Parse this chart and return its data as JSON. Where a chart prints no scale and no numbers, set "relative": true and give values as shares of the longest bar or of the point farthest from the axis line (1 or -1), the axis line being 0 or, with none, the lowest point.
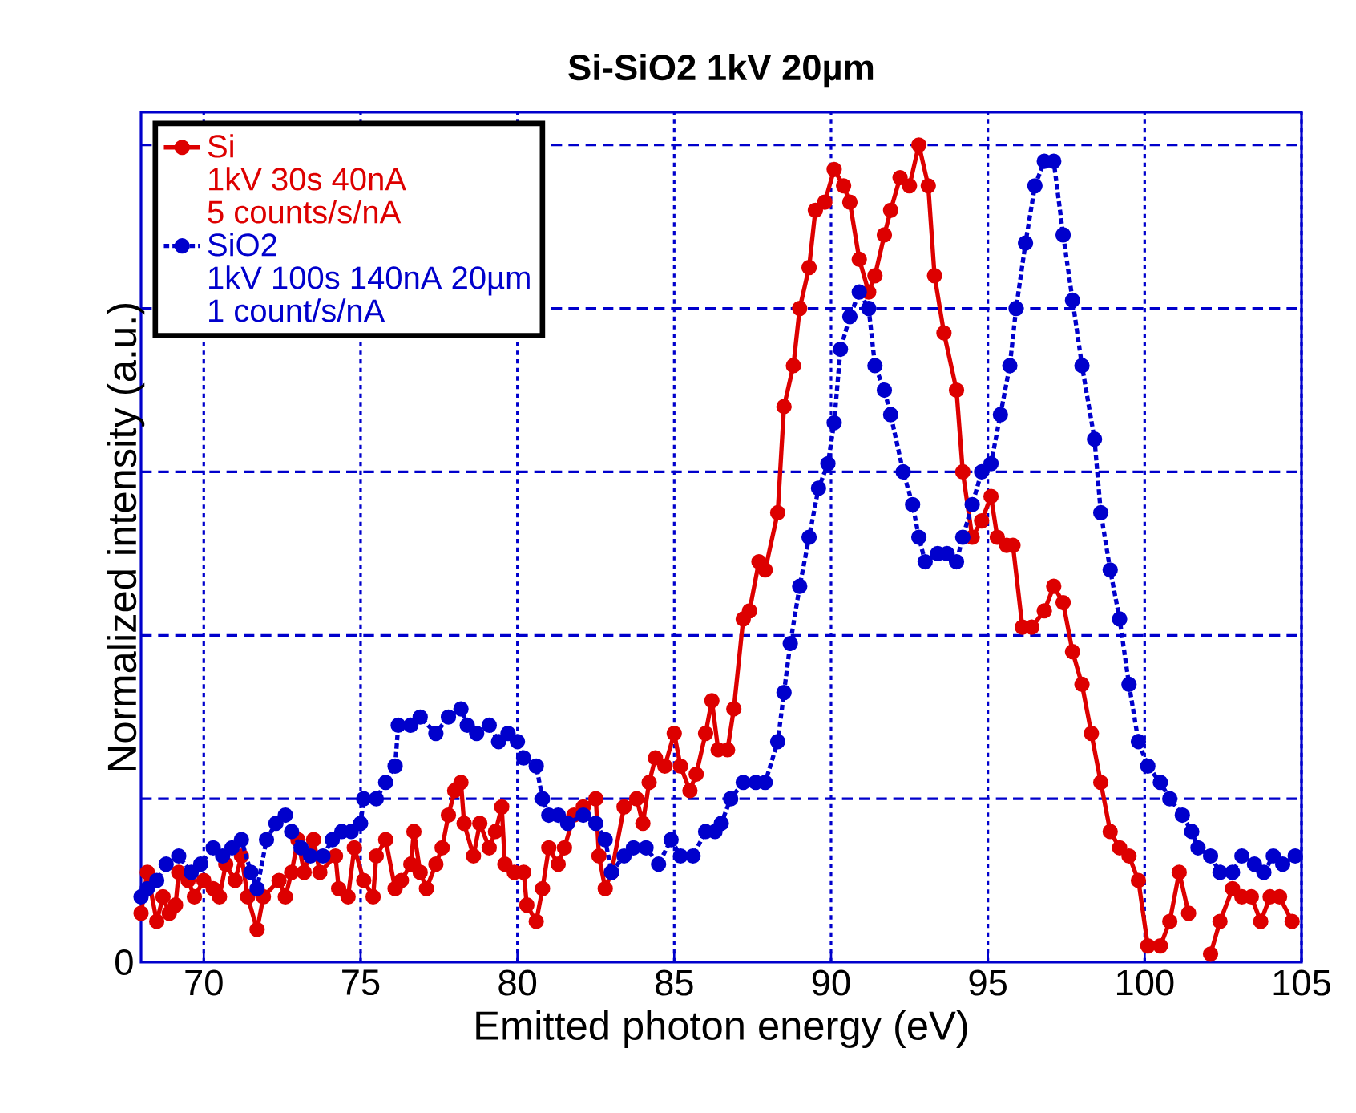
{
  "chart_data": {
    "type": "line",
    "title": "Si-SiO2 1kV 20µm",
    "xlabel": "Emitted photon energy (eV)",
    "ylabel": "Normalized intensity (a.u.)",
    "relative": true,
    "xlim": [
      68,
      105
    ],
    "xticks": [
      70,
      75,
      80,
      85,
      90,
      95,
      100,
      105
    ],
    "grid": true,
    "legend": "top left",
    "marker": "circle",
    "annotations": [
      "0",
      "1kV 30s 40nA",
      "5 counts/s/nA",
      "1kV 100s 140nA 20µm",
      "1 count/s/nA"
    ],
    "series": [
      {
        "name": "Si",
        "color": "#dd0000",
        "line_style": "solid",
        "x": [
          68.0,
          68.2,
          68.5,
          68.7,
          68.9,
          69.1,
          69.2,
          69.5,
          69.7,
          70.0,
          70.3,
          70.5,
          70.7,
          71.0,
          71.2,
          71.4,
          71.7,
          71.9,
          72.4,
          72.6,
          72.8,
          73.0,
          73.2,
          73.5,
          73.7,
          74.2,
          74.3,
          74.6,
          74.8,
          75.1,
          75.4,
          75.5,
          75.8,
          76.1,
          76.3,
          76.6,
          76.7,
          76.9,
          77.1,
          77.4,
          77.6,
          77.8,
          78.0,
          78.2,
          78.3,
          78.6,
          78.8,
          79.1,
          79.3,
          79.5,
          79.6,
          79.9,
          80.2,
          80.3,
          80.6,
          80.8,
          81.0,
          81.3,
          81.5,
          81.8,
          82.1,
          82.5,
          82.6,
          82.8,
          83.0,
          83.4,
          83.8,
          84.0,
          84.2,
          84.4,
          84.7,
          85.0,
          85.2,
          85.5,
          85.7,
          86.0,
          86.2,
          86.4,
          86.7,
          86.9,
          87.2,
          87.4,
          87.7,
          87.9,
          88.3,
          88.5,
          88.8,
          89.0,
          89.3,
          89.5,
          89.8,
          90.1,
          90.4,
          90.6,
          90.9,
          91.2,
          91.4,
          91.7,
          91.9,
          92.2,
          92.5,
          92.8,
          93.1,
          93.3,
          93.6,
          94.0,
          94.2,
          94.5,
          94.8,
          95.1,
          95.3,
          95.6,
          95.8,
          96.1,
          96.4,
          96.8,
          97.1,
          97.4,
          97.7,
          98.0,
          98.3,
          98.6,
          98.9,
          99.2,
          99.5,
          99.8,
          100.1,
          100.5,
          100.8,
          101.1,
          101.4,
          101.8,
          102.1,
          102.4,
          102.8,
          103.1,
          103.4,
          103.7,
          104.0,
          104.3,
          104.7
        ],
        "values": [
          0.06,
          0.11,
          0.05,
          0.08,
          0.06,
          0.07,
          0.11,
          0.1,
          0.08,
          0.1,
          0.09,
          0.08,
          0.12,
          0.1,
          0.13,
          0.08,
          0.04,
          0.08,
          0.1,
          0.08,
          0.11,
          0.15,
          0.11,
          0.15,
          0.11,
          0.13,
          0.09,
          0.08,
          0.14,
          0.1,
          0.08,
          0.13,
          0.15,
          0.09,
          0.1,
          0.12,
          0.16,
          0.11,
          0.09,
          0.12,
          0.14,
          0.18,
          0.21,
          0.22,
          0.17,
          0.13,
          0.17,
          0.14,
          0.16,
          0.19,
          0.12,
          0.11,
          0.11,
          0.07,
          0.05,
          0.09,
          0.14,
          0.12,
          0.14,
          0.18,
          0.19,
          0.2,
          0.13,
          0.09,
          0.11,
          0.19,
          0.2,
          0.17,
          0.22,
          0.25,
          0.24,
          0.28,
          0.24,
          0.21,
          0.23,
          0.28,
          0.32,
          0.26,
          0.26,
          0.31,
          0.42,
          0.43,
          0.49,
          0.48,
          0.55,
          0.68,
          0.73,
          0.8,
          0.85,
          0.92,
          0.93,
          0.97,
          0.95,
          0.93,
          0.86,
          0.82,
          0.84,
          0.89,
          0.92,
          0.96,
          0.95,
          1.0,
          0.95,
          0.84,
          0.77,
          0.7,
          0.6,
          0.52,
          0.54,
          0.57,
          0.52,
          0.51,
          0.51,
          0.41,
          0.41,
          0.43,
          0.46,
          0.44,
          0.38,
          0.34,
          0.28,
          0.22,
          0.16,
          0.14,
          0.13,
          0.1,
          0.02,
          0.02,
          0.05,
          0.11,
          0.06,
          null,
          0.01,
          0.05,
          0.09,
          0.08,
          0.08,
          0.05,
          0.08,
          0.08,
          0.05
        ]
      },
      {
        "name": "SiO2",
        "color": "#0000cc",
        "line_style": "dotted",
        "x": [
          68.0,
          68.2,
          68.5,
          68.8,
          69.2,
          69.6,
          69.9,
          70.3,
          70.6,
          70.9,
          71.2,
          71.5,
          71.7,
          72.0,
          72.3,
          72.6,
          72.8,
          73.1,
          73.4,
          73.8,
          74.1,
          74.4,
          74.7,
          75.0,
          75.1,
          75.5,
          75.8,
          76.1,
          76.2,
          76.6,
          76.9,
          77.4,
          77.8,
          78.2,
          78.4,
          78.7,
          79.1,
          79.4,
          79.7,
          80.0,
          80.2,
          80.6,
          80.8,
          81.0,
          81.3,
          81.6,
          82.1,
          82.5,
          82.8,
          83.0,
          83.4,
          83.7,
          84.1,
          84.5,
          84.9,
          85.2,
          85.6,
          86.0,
          86.3,
          86.5,
          86.8,
          87.2,
          87.6,
          87.9,
          88.3,
          88.5,
          88.7,
          89.0,
          89.3,
          89.6,
          89.9,
          90.1,
          90.3,
          90.6,
          90.9,
          91.2,
          91.4,
          91.7,
          91.9,
          92.3,
          92.6,
          92.8,
          93.0,
          93.4,
          93.7,
          94.0,
          94.2,
          94.5,
          94.8,
          95.1,
          95.4,
          95.7,
          95.9,
          96.2,
          96.5,
          96.8,
          97.1,
          97.4,
          97.7,
          98.0,
          98.4,
          98.6,
          98.9,
          99.2,
          99.5,
          99.8,
          100.1,
          100.5,
          100.8,
          101.2,
          101.5,
          101.7,
          102.1,
          102.4,
          102.8,
          103.1,
          103.5,
          103.8,
          104.1,
          104.4,
          104.8
        ],
        "values": [
          0.08,
          0.09,
          0.1,
          0.12,
          0.13,
          0.11,
          0.12,
          0.14,
          0.13,
          0.14,
          0.15,
          0.11,
          0.09,
          0.15,
          0.17,
          0.18,
          0.16,
          0.14,
          0.13,
          0.13,
          0.15,
          0.16,
          0.16,
          0.17,
          0.2,
          0.2,
          0.22,
          0.24,
          0.29,
          0.29,
          0.3,
          0.28,
          0.3,
          0.31,
          0.29,
          0.28,
          0.29,
          0.27,
          0.28,
          0.27,
          0.25,
          0.24,
          0.2,
          0.18,
          0.18,
          0.17,
          0.18,
          0.17,
          0.15,
          0.11,
          0.13,
          0.14,
          0.14,
          0.12,
          0.15,
          0.13,
          0.13,
          0.16,
          0.16,
          0.17,
          0.2,
          0.22,
          0.22,
          0.22,
          0.27,
          0.33,
          0.39,
          0.46,
          0.52,
          0.58,
          0.61,
          0.66,
          0.75,
          0.79,
          0.82,
          0.8,
          0.73,
          0.7,
          0.67,
          0.6,
          0.56,
          0.52,
          0.49,
          0.5,
          0.5,
          0.49,
          0.52,
          0.56,
          0.6,
          0.61,
          0.67,
          0.73,
          0.8,
          0.88,
          0.95,
          0.98,
          0.98,
          0.89,
          0.81,
          0.73,
          0.64,
          0.55,
          0.48,
          0.42,
          0.34,
          0.27,
          0.24,
          0.22,
          0.2,
          0.18,
          0.16,
          0.14,
          0.13,
          0.11,
          0.11,
          0.13,
          0.12,
          0.11,
          0.13,
          0.12,
          0.13
        ]
      }
    ]
  }
}
